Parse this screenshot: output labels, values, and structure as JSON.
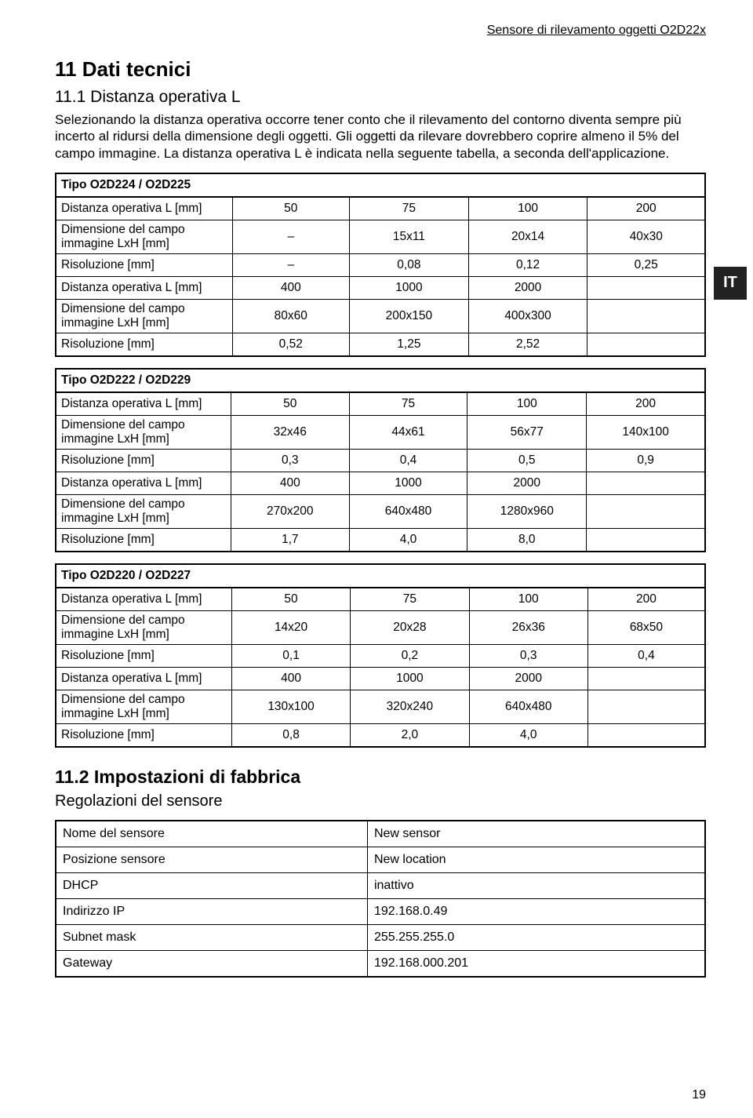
{
  "header": "Sensore di rilevamento oggetti O2D22x",
  "section_title": "11 Dati tecnici",
  "subsection_title": "11.1 Distanza operativa L",
  "paragraph": "Selezionando la distanza operativa occorre tener conto che il rilevamento del contorno diventa sempre più incerto al ridursi della dimensione degli oggetti. Gli oggetti da rilevare dovrebbero coprire almeno il 5% del campo immagine. La distanza operativa L è indicata nella seguente tabella, a seconda dell'applicazione.",
  "lang_badge": "IT",
  "row_labels": {
    "dist": "Distanza operativa L [mm]",
    "dim": "Dimensione del campo immagine LxH [mm]",
    "res": "Risoluzione [mm]"
  },
  "tables": [
    {
      "title": "Tipo O2D224 / O2D225",
      "rows": [
        [
          "50",
          "75",
          "100",
          "200"
        ],
        [
          "–",
          "15x11",
          "20x14",
          "40x30"
        ],
        [
          "–",
          "0,08",
          "0,12",
          "0,25"
        ],
        [
          "400",
          "1000",
          "2000",
          ""
        ],
        [
          "80x60",
          "200x150",
          "400x300",
          ""
        ],
        [
          "0,52",
          "1,25",
          "2,52",
          ""
        ]
      ]
    },
    {
      "title": "Tipo O2D222 / O2D229",
      "rows": [
        [
          "50",
          "75",
          "100",
          "200"
        ],
        [
          "32x46",
          "44x61",
          "56x77",
          "140x100"
        ],
        [
          "0,3",
          "0,4",
          "0,5",
          "0,9"
        ],
        [
          "400",
          "1000",
          "2000",
          ""
        ],
        [
          "270x200",
          "640x480",
          "1280x960",
          ""
        ],
        [
          "1,7",
          "4,0",
          "8,0",
          ""
        ]
      ]
    },
    {
      "title": "Tipo O2D220 / O2D227",
      "rows": [
        [
          "50",
          "75",
          "100",
          "200"
        ],
        [
          "14x20",
          "20x28",
          "26x36",
          "68x50"
        ],
        [
          "0,1",
          "0,2",
          "0,3",
          "0,4"
        ],
        [
          "400",
          "1000",
          "2000",
          ""
        ],
        [
          "130x100",
          "320x240",
          "640x480",
          ""
        ],
        [
          "0,8",
          "2,0",
          "4,0",
          ""
        ]
      ]
    }
  ],
  "section2_title": "11.2 Impostazioni di fabbrica",
  "section2_sub": "Regolazioni del sensore",
  "settings": [
    [
      "Nome del sensore",
      "New sensor"
    ],
    [
      "Posizione sensore",
      "New location"
    ],
    [
      "DHCP",
      "inattivo"
    ],
    [
      "Indirizzo IP",
      "192.168.0.49"
    ],
    [
      "Subnet mask",
      "255.255.255.0"
    ],
    [
      "Gateway",
      "192.168.000.201"
    ]
  ],
  "page_number": "19"
}
